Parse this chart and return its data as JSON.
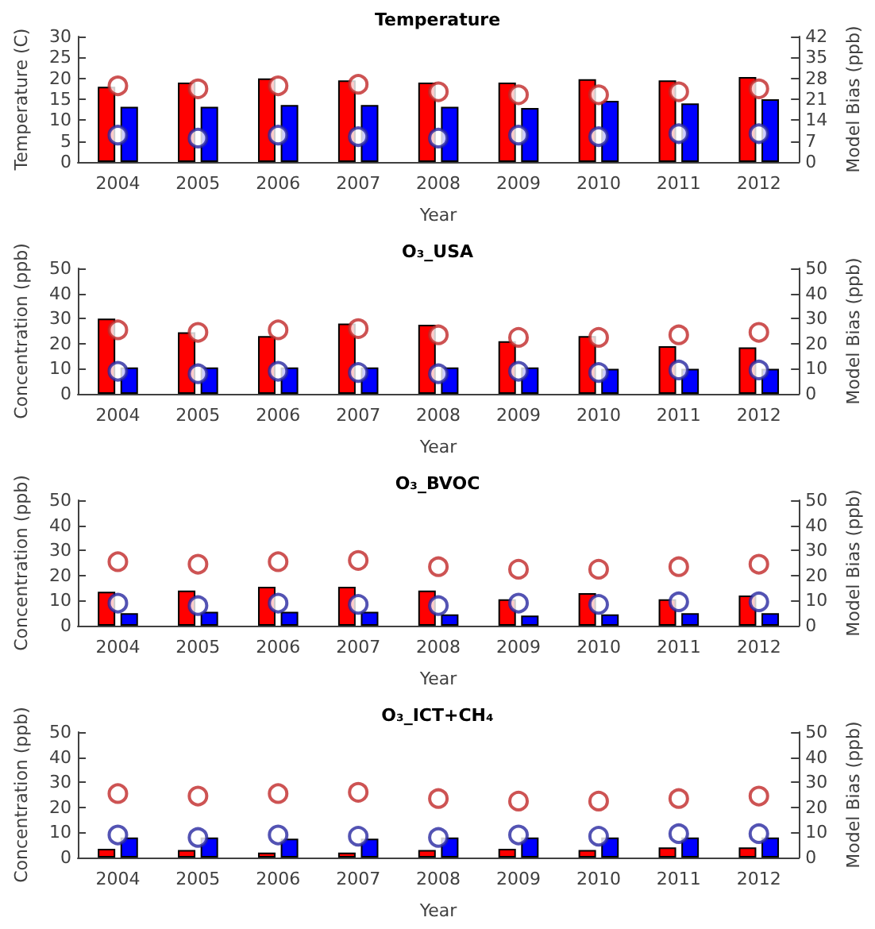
{
  "chart_data": [
    {
      "type": "bar",
      "title": "Temperature",
      "xlabel": "Year",
      "ylabel": "Temperature (C)",
      "y2label": "Model Bias (ppb)",
      "categories": [
        "2004",
        "2005",
        "2006",
        "2007",
        "2008",
        "2009",
        "2010",
        "2011",
        "2012"
      ],
      "ylim": [
        0,
        30
      ],
      "yticks": [
        0,
        5,
        10,
        15,
        20,
        25,
        30
      ],
      "y2lim": [
        0,
        42
      ],
      "y2ticks": [
        0,
        7,
        14,
        21,
        28,
        35,
        42
      ],
      "marker": "circle",
      "series": [
        {
          "color": "#ff0000",
          "values": [
            18,
            19,
            20,
            19.5,
            19,
            19,
            19.8,
            19.5,
            20.3
          ]
        },
        {
          "color": "#0000ff",
          "values": [
            13.2,
            13.2,
            13.6,
            13.6,
            13.2,
            12.9,
            14.6,
            14,
            15
          ]
        },
        {
          "type": "scatter",
          "axis": "y2",
          "color": "#c02828",
          "values": [
            25.5,
            24.5,
            25.5,
            26,
            23.5,
            22.5,
            22.5,
            23.5,
            24.5
          ]
        },
        {
          "type": "scatter",
          "axis": "y2",
          "color": "#2828a0",
          "values": [
            9,
            8,
            9,
            8.5,
            8,
            9,
            8.5,
            9.5,
            9.5
          ]
        }
      ]
    },
    {
      "type": "bar",
      "title": "O₃_USA",
      "xlabel": "Year",
      "ylabel": "Concentration (ppb)",
      "y2label": "Model Bias (ppb)",
      "categories": [
        "2004",
        "2005",
        "2006",
        "2007",
        "2008",
        "2009",
        "2010",
        "2011",
        "2012"
      ],
      "ylim": [
        0,
        50
      ],
      "yticks": [
        0,
        10,
        20,
        30,
        40,
        50
      ],
      "y2lim": [
        0,
        50
      ],
      "y2ticks": [
        0,
        10,
        20,
        30,
        40,
        50
      ],
      "marker": "circle",
      "series": [
        {
          "color": "#ff0000",
          "values": [
            30,
            24.5,
            23,
            28,
            27.5,
            21,
            23,
            19,
            18.5
          ]
        },
        {
          "color": "#0000ff",
          "values": [
            10.5,
            10.5,
            10.5,
            10.5,
            10.5,
            10.5,
            10,
            10,
            10
          ]
        },
        {
          "type": "scatter",
          "axis": "y2",
          "color": "#c02828",
          "values": [
            25.5,
            24.5,
            25.5,
            26,
            23.5,
            22.5,
            22.5,
            23.5,
            24.5
          ]
        },
        {
          "type": "scatter",
          "axis": "y2",
          "color": "#2828a0",
          "values": [
            9,
            8,
            9,
            8.5,
            8,
            9,
            8.5,
            9.5,
            9.5
          ]
        }
      ]
    },
    {
      "type": "bar",
      "title": "O₃_BVOC",
      "xlabel": "Year",
      "ylabel": "Concentration (ppb)",
      "y2label": "Model Bias (ppb)",
      "categories": [
        "2004",
        "2005",
        "2006",
        "2007",
        "2008",
        "2009",
        "2010",
        "2011",
        "2012"
      ],
      "ylim": [
        0,
        50
      ],
      "yticks": [
        0,
        10,
        20,
        30,
        40,
        50
      ],
      "y2lim": [
        0,
        50
      ],
      "y2ticks": [
        0,
        10,
        20,
        30,
        40,
        50
      ],
      "marker": "circle",
      "series": [
        {
          "color": "#ff0000",
          "values": [
            13.5,
            14,
            15.5,
            15.5,
            14,
            10.5,
            13,
            10.5,
            12
          ]
        },
        {
          "color": "#0000ff",
          "values": [
            5,
            5.5,
            5.5,
            5.5,
            4.5,
            4,
            4.5,
            5,
            5
          ]
        },
        {
          "type": "scatter",
          "axis": "y2",
          "color": "#c02828",
          "values": [
            25.5,
            24.5,
            25.5,
            26,
            23.5,
            22.5,
            22.5,
            23.5,
            24.5
          ]
        },
        {
          "type": "scatter",
          "axis": "y2",
          "color": "#2828a0",
          "values": [
            9,
            8,
            9,
            8.5,
            8,
            9,
            8.5,
            9.5,
            9.5
          ]
        }
      ]
    },
    {
      "type": "bar",
      "title": "O₃_ICT+CH₄",
      "xlabel": "Year",
      "ylabel": "Concentration (ppb)",
      "y2label": "Model Bias (ppb)",
      "categories": [
        "2004",
        "2005",
        "2006",
        "2007",
        "2008",
        "2009",
        "2010",
        "2011",
        "2012"
      ],
      "ylim": [
        0,
        50
      ],
      "yticks": [
        0,
        10,
        20,
        30,
        40,
        50
      ],
      "y2lim": [
        0,
        50
      ],
      "y2ticks": [
        0,
        10,
        20,
        30,
        40,
        50
      ],
      "marker": "circle",
      "series": [
        {
          "color": "#ff0000",
          "values": [
            3.5,
            3,
            2,
            2,
            3,
            3.5,
            3,
            4,
            4
          ]
        },
        {
          "color": "#0000ff",
          "values": [
            8,
            8,
            7.5,
            7.5,
            8,
            8,
            8,
            8,
            8
          ]
        },
        {
          "type": "scatter",
          "axis": "y2",
          "color": "#c02828",
          "values": [
            25.5,
            24.5,
            25.5,
            26,
            23.5,
            22.5,
            22.5,
            23.5,
            24.5
          ]
        },
        {
          "type": "scatter",
          "axis": "y2",
          "color": "#2828a0",
          "values": [
            9,
            8,
            9,
            8.5,
            8,
            9,
            8.5,
            9.5,
            9.5
          ]
        }
      ]
    }
  ]
}
